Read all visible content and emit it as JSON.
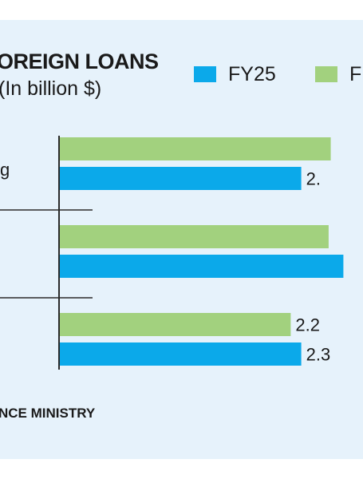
{
  "colors": {
    "panel_bg": "#e6f2fb",
    "fy25": "#0ba9ea",
    "fy_other": "#a2d17e",
    "axis": "#2b2b2b"
  },
  "title": "OREIGN LOANS",
  "subtitle": "(In billion $)",
  "source": "NCE MINISTRY",
  "chart_data": {
    "type": "bar",
    "orientation": "horizontal",
    "title": "OREIGN LOANS",
    "subtitle": "(In billion $)",
    "legend": {
      "position": "top-right",
      "entries": [
        "FY25",
        "F"
      ]
    },
    "categories": [
      "g",
      "",
      ""
    ],
    "series": [
      {
        "name": "F",
        "values": [
          2.58,
          2.56,
          2.2
        ],
        "labels": [
          "",
          "",
          "2.2"
        ]
      },
      {
        "name": "FY25",
        "values": [
          2.3,
          2.7,
          2.3
        ],
        "labels": [
          "2.",
          "",
          "2.3"
        ]
      }
    ],
    "xlim": [
      0,
      2.75
    ],
    "grid": false
  }
}
